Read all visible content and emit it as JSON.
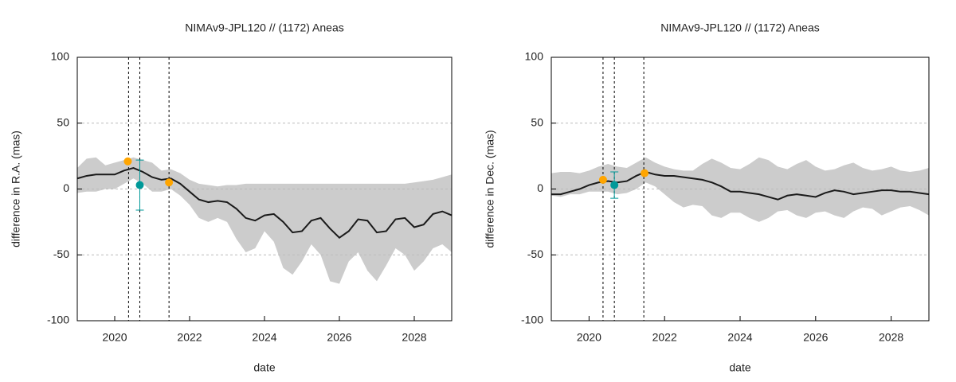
{
  "chart_data": [
    {
      "type": "line",
      "title": "NIMAv9-JPL120 // (1172) Aneas",
      "x_label": "date",
      "y_label": "difference in R.A. (mas)",
      "xlim": [
        2019,
        2029
      ],
      "xticks": [
        2020,
        2022,
        2024,
        2026,
        2028
      ],
      "ylim": [
        -100,
        100
      ],
      "yticks": [
        -100,
        -50,
        0,
        50,
        100
      ],
      "grid": true,
      "x": [
        2019,
        2019.25,
        2019.5,
        2019.75,
        2020,
        2020.25,
        2020.5,
        2020.75,
        2021,
        2021.25,
        2021.5,
        2021.75,
        2022,
        2022.25,
        2022.5,
        2022.75,
        2023,
        2023.25,
        2023.5,
        2023.75,
        2024,
        2024.25,
        2024.5,
        2024.75,
        2025,
        2025.25,
        2025.5,
        2025.75,
        2026,
        2026.25,
        2026.5,
        2026.75,
        2027,
        2027.25,
        2027.5,
        2027.75,
        2028,
        2028.25,
        2028.5,
        2028.75,
        2029
      ],
      "series": [
        {
          "color": "#1a1a1a",
          "values": [
            8,
            10,
            11,
            11,
            11,
            14,
            16,
            13,
            9,
            7,
            8,
            4,
            -2,
            -8,
            -10,
            -9,
            -10,
            -15,
            -22,
            -24,
            -20,
            -19,
            -25,
            -33,
            -32,
            -24,
            -22,
            -30,
            -37,
            -32,
            -23,
            -24,
            -33,
            -32,
            -23,
            -22,
            -29,
            -27,
            -19,
            -17,
            -20
          ]
        }
      ],
      "band": {
        "color": "#cccccc",
        "upper": [
          16,
          23,
          24,
          18,
          20,
          22,
          24,
          22,
          20,
          14,
          15,
          12,
          7,
          4,
          3,
          2,
          3,
          3,
          4,
          4,
          4,
          4,
          4,
          4,
          4,
          4,
          4,
          4,
          4,
          4,
          4,
          4,
          4,
          4,
          4,
          4,
          5,
          6,
          7,
          9,
          11
        ],
        "lower": [
          -3,
          -2,
          -2,
          0,
          0,
          4,
          8,
          4,
          -2,
          -2,
          0,
          -5,
          -12,
          -22,
          -25,
          -22,
          -25,
          -38,
          -48,
          -45,
          -32,
          -40,
          -60,
          -65,
          -55,
          -42,
          -50,
          -70,
          -72,
          -55,
          -48,
          -62,
          -70,
          -58,
          -45,
          -50,
          -62,
          -55,
          -45,
          -42,
          -48
        ]
      },
      "vlines": [
        2020.37,
        2020.67,
        2021.45
      ],
      "points": [
        {
          "x": 2020.35,
          "y": 21,
          "color": "#ffa500"
        },
        {
          "x": 2021.45,
          "y": 5,
          "color": "#ffa500"
        },
        {
          "x": 2020.67,
          "y": 3,
          "error": 19,
          "color": "#009999"
        }
      ]
    },
    {
      "type": "line",
      "title": "NIMAv9-JPL120 // (1172) Aneas",
      "x_label": "date",
      "y_label": "difference in Dec. (mas)",
      "xlim": [
        2019,
        2029
      ],
      "xticks": [
        2020,
        2022,
        2024,
        2026,
        2028
      ],
      "ylim": [
        -100,
        100
      ],
      "yticks": [
        -100,
        -50,
        0,
        50,
        100
      ],
      "grid": true,
      "x": [
        2019,
        2019.25,
        2019.5,
        2019.75,
        2020,
        2020.25,
        2020.5,
        2020.75,
        2021,
        2021.25,
        2021.5,
        2021.75,
        2022,
        2022.25,
        2022.5,
        2022.75,
        2023,
        2023.25,
        2023.5,
        2023.75,
        2024,
        2024.25,
        2024.5,
        2024.75,
        2025,
        2025.25,
        2025.5,
        2025.75,
        2026,
        2026.25,
        2026.5,
        2026.75,
        2027,
        2027.25,
        2027.5,
        2027.75,
        2028,
        2028.25,
        2028.5,
        2028.75,
        2029
      ],
      "series": [
        {
          "color": "#1a1a1a",
          "values": [
            -4,
            -4,
            -2,
            0,
            3,
            5,
            6,
            5,
            6,
            10,
            13,
            11,
            10,
            10,
            9,
            8,
            7,
            5,
            2,
            -2,
            -2,
            -3,
            -4,
            -6,
            -8,
            -5,
            -4,
            -5,
            -6,
            -3,
            -1,
            -2,
            -4,
            -3,
            -2,
            -1,
            -1,
            -2,
            -2,
            -3,
            -4
          ]
        }
      ],
      "band": {
        "color": "#cccccc",
        "upper": [
          12,
          13,
          13,
          12,
          14,
          17,
          19,
          17,
          16,
          20,
          24,
          20,
          17,
          15,
          14,
          14,
          19,
          23,
          20,
          16,
          15,
          19,
          24,
          22,
          17,
          15,
          19,
          22,
          17,
          14,
          15,
          18,
          20,
          16,
          14,
          15,
          17,
          14,
          13,
          14,
          16
        ],
        "lower": [
          -5,
          -6,
          -4,
          -4,
          -2,
          -2,
          -2,
          -4,
          -3,
          0,
          5,
          2,
          -4,
          -10,
          -14,
          -12,
          -13,
          -20,
          -22,
          -18,
          -18,
          -22,
          -25,
          -22,
          -17,
          -16,
          -20,
          -22,
          -18,
          -17,
          -20,
          -22,
          -17,
          -14,
          -15,
          -20,
          -17,
          -14,
          -13,
          -16,
          -20
        ]
      },
      "vlines": [
        2020.37,
        2020.67,
        2021.45
      ],
      "points": [
        {
          "x": 2020.37,
          "y": 7,
          "color": "#ffa500"
        },
        {
          "x": 2021.47,
          "y": 12,
          "color": "#ffa500"
        },
        {
          "x": 2020.67,
          "y": 3,
          "error": 10,
          "color": "#009999"
        }
      ]
    }
  ]
}
